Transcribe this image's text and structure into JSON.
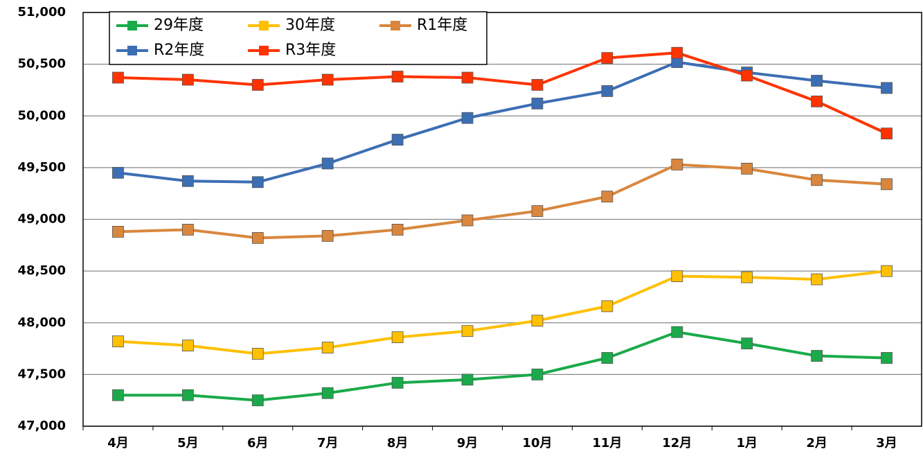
{
  "chart_data": {
    "type": "line",
    "categories": [
      "4月",
      "5月",
      "6月",
      "7月",
      "8月",
      "9月",
      "10月",
      "11月",
      "12月",
      "1月",
      "2月",
      "3月"
    ],
    "series": [
      {
        "name": "29年度",
        "color": "#1aaa4a",
        "values": [
          47300,
          47300,
          47250,
          47320,
          47420,
          47450,
          47500,
          47660,
          47910,
          47800,
          47680,
          47660
        ]
      },
      {
        "name": "30年度",
        "color": "#ffc000",
        "values": [
          47820,
          47780,
          47700,
          47760,
          47860,
          47920,
          48020,
          48160,
          48450,
          48440,
          48420,
          48500
        ]
      },
      {
        "name": "R1年度",
        "color": "#d9873e",
        "values": [
          48880,
          48900,
          48820,
          48840,
          48900,
          48990,
          49080,
          49220,
          49530,
          49490,
          49380,
          49340
        ]
      },
      {
        "name": "R2年度",
        "color": "#3c6eb4",
        "values": [
          49450,
          49370,
          49360,
          49540,
          49770,
          49980,
          50120,
          50240,
          50520,
          50420,
          50340,
          50270
        ]
      },
      {
        "name": "R3年度",
        "color": "#ff3300",
        "values": [
          50370,
          50350,
          50300,
          50350,
          50380,
          50370,
          50300,
          50560,
          50610,
          50390,
          50140,
          49830
        ]
      }
    ],
    "ylim": [
      47000,
      51000
    ],
    "yticks": [
      {
        "value": 47000,
        "label": "47,000"
      },
      {
        "value": 47500,
        "label": "47,500"
      },
      {
        "value": 48000,
        "label": "48,000"
      },
      {
        "value": 48500,
        "label": "48,500"
      },
      {
        "value": 49000,
        "label": "49,000"
      },
      {
        "value": 49500,
        "label": "49,500"
      },
      {
        "value": 50000,
        "label": "50,000"
      },
      {
        "value": 50500,
        "label": "50,500"
      },
      {
        "value": 51000,
        "label": "51,000"
      }
    ],
    "grid": true,
    "legend": "upper left"
  }
}
